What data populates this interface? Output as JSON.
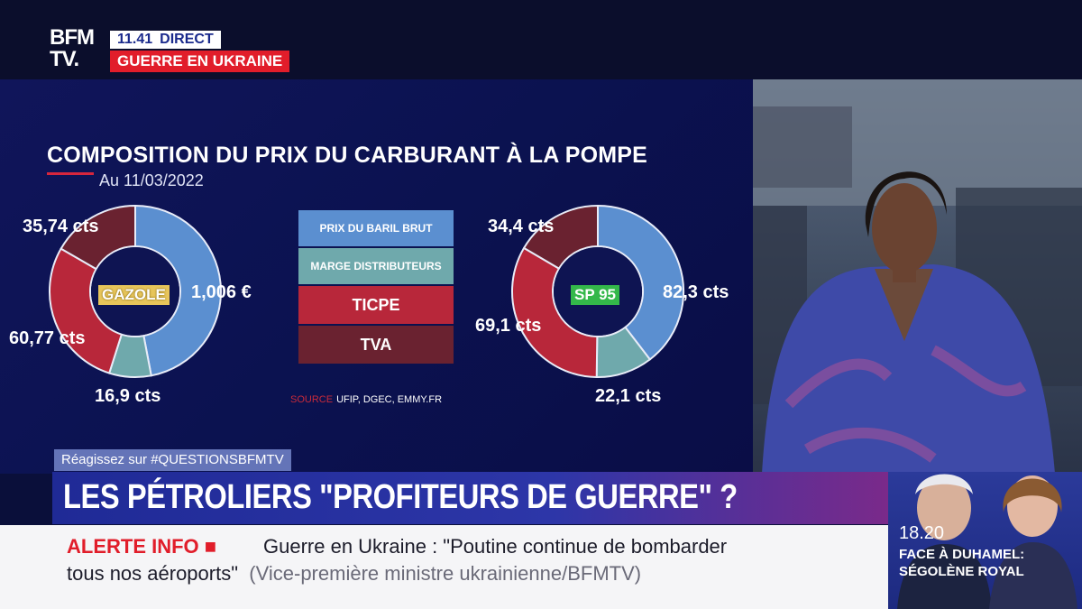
{
  "channel": {
    "logo_line1": "BFM",
    "logo_line2": "TV.",
    "time": "11.41",
    "status": "DIRECT",
    "topic": "GUERRE EN UKRAINE"
  },
  "colors": {
    "brut": "#5b8fd0",
    "marge": "#6fa9ac",
    "ticpe": "#b8273a",
    "tva": "#6a2230",
    "alert": "#e11d2a",
    "gazole_tag": "#e7c55a",
    "sp95_tag": "#34b84a"
  },
  "chart_data": {
    "type": "pie",
    "title": "COMPOSITION DU PRIX DU CARBURANT À LA POMPE",
    "subtitle": "Au 11/03/2022",
    "legend": [
      "PRIX DU BARIL BRUT",
      "MARGE DISTRIBUTEURS",
      "TICPE",
      "TVA"
    ],
    "charts": [
      {
        "center_label": "GAZOLE",
        "slices": [
          {
            "component": "PRIX DU BARIL BRUT",
            "label": "1,006 €",
            "value": 100.6
          },
          {
            "component": "MARGE DISTRIBUTEURS",
            "label": "16,9 cts",
            "value": 16.9
          },
          {
            "component": "TICPE",
            "label": "60,77 cts",
            "value": 60.77
          },
          {
            "component": "TVA",
            "label": "35,74 cts",
            "value": 35.74
          }
        ]
      },
      {
        "center_label": "SP 95",
        "slices": [
          {
            "component": "PRIX DU BARIL BRUT",
            "label": "82,3 cts",
            "value": 82.3
          },
          {
            "component": "MARGE DISTRIBUTEURS",
            "label": "22,1 cts",
            "value": 22.1
          },
          {
            "component": "TICPE",
            "label": "69,1 cts",
            "value": 69.1
          },
          {
            "component": "TVA",
            "label": "34,4 cts",
            "value": 34.4
          }
        ]
      }
    ],
    "source_label": "SOURCE",
    "source": "UFIP, DGEC, EMMY.FR"
  },
  "hashtag": "Réagissez sur #QUESTIONSBFMTV",
  "headline": "LES PÉTROLIERS \"PROFITEURS DE GUERRE\" ?",
  "ticker": {
    "label": "ALERTE INFO",
    "text_line1": "Guerre en Ukraine : \"Poutine continue de bombarder",
    "text_line2": "tous nos aéroports\"",
    "attribution": "(Vice-première ministre ukrainienne/BFMTV)"
  },
  "promo": {
    "time": "18.20",
    "show": "FACE À DUHAMEL:",
    "guest": "SÉGOLÈNE ROYAL"
  }
}
